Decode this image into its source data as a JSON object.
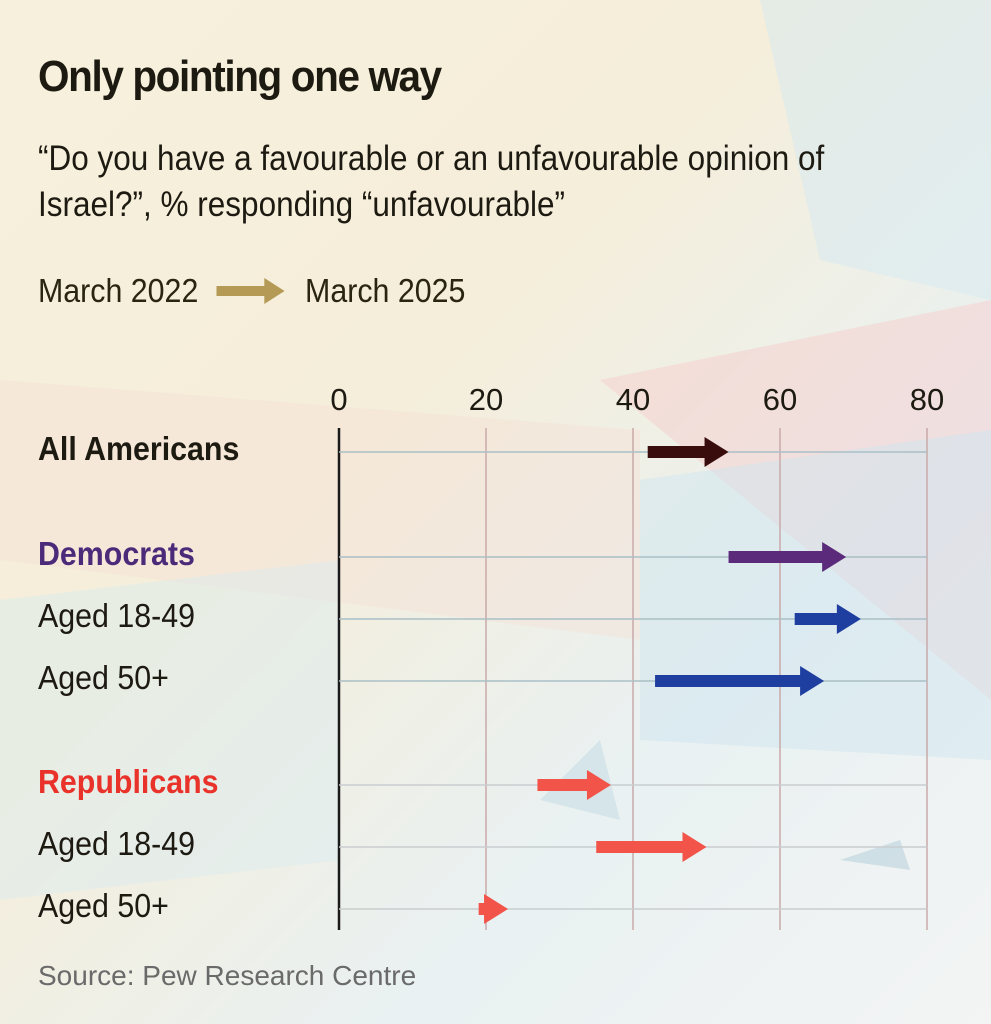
{
  "chart_data": {
    "type": "arrow",
    "title": "Only pointing one way",
    "subtitle": "“Do you have a favourable or an unfavourable opinion of Israel?”, % responding “unfavourable”",
    "legend": {
      "from": "March 2022",
      "to": "March 2025",
      "arrow_color": "#b49a55"
    },
    "xlim": [
      0,
      80
    ],
    "x_ticks": [
      "0",
      "20",
      "40",
      "60",
      "80"
    ],
    "grid": true,
    "rows": [
      {
        "label": "All Americans",
        "group": true,
        "label_color": "#1d1a12",
        "from": 42,
        "to": 53,
        "color": "#3a0d0d"
      },
      {
        "label": "Democrats",
        "group": true,
        "label_color": "#4b2a7a",
        "from": 53,
        "to": 69,
        "color": "#5b2a7a"
      },
      {
        "label": "Aged 18-49",
        "group": false,
        "label_color": "#1d1a12",
        "from": 62,
        "to": 71,
        "color": "#1f3fa0"
      },
      {
        "label": "Aged 50+",
        "group": false,
        "label_color": "#1d1a12",
        "from": 43,
        "to": 66,
        "color": "#1f3fa0"
      },
      {
        "label": "Republicans",
        "group": true,
        "label_color": "#e8322a",
        "from": 27,
        "to": 37,
        "color": "#f2544a"
      },
      {
        "label": "Aged 18-49",
        "group": false,
        "label_color": "#1d1a12",
        "from": 35,
        "to": 50,
        "color": "#f2544a"
      },
      {
        "label": "Aged 50+",
        "group": false,
        "label_color": "#1d1a12",
        "from": 19,
        "to": 23,
        "color": "#f2544a"
      }
    ],
    "source": "Source: Pew Research Centre"
  }
}
